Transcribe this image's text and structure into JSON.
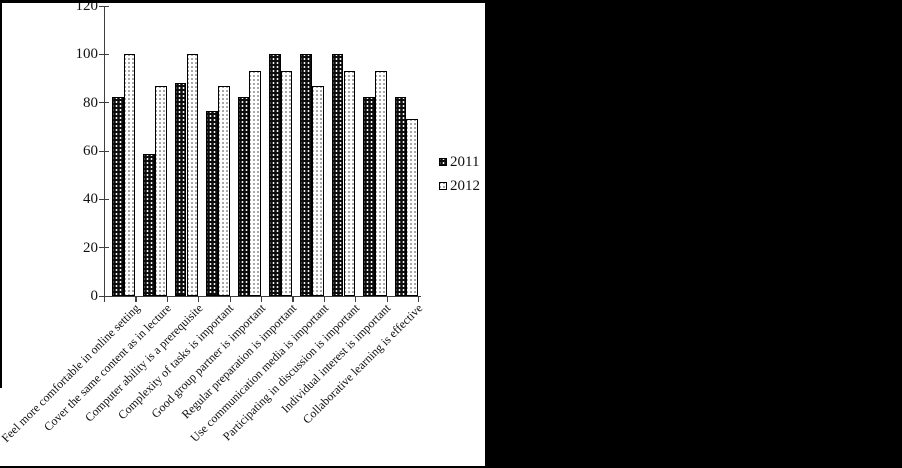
{
  "figure": {
    "background": "#ffffff",
    "mask_color": "#000000",
    "axis_color": "#3f3f3f",
    "text_color": "#111111"
  },
  "chart_data": {
    "type": "bar",
    "title": "",
    "xlabel": "",
    "ylabel": "",
    "ylim": [
      0,
      120
    ],
    "yticks": [
      0,
      20,
      40,
      60,
      80,
      100,
      120
    ],
    "grid": false,
    "legend_position": "right-center",
    "category_label_rotation_deg": 45,
    "categories": [
      "Feel more comfortable in online setting",
      "Cover the same content as in lecture",
      "Computer ability is a prerequisite",
      "Complexity of tasks is important",
      "Good group partner is important",
      "Regular preparation is important",
      "Use communication media is important",
      "Participating in discussion is important",
      "Individual interest is important",
      "Collaborative learning is effective"
    ],
    "series": [
      {
        "name": "2011",
        "fill": "#000000",
        "pattern": "white-dots-on-black",
        "values": [
          82.4,
          58.8,
          88.2,
          76.5,
          82.4,
          100,
          100,
          100,
          82.4,
          82.4
        ]
      },
      {
        "name": "2012",
        "fill": "#ffffff",
        "pattern": "black-dots-on-white",
        "values": [
          100,
          86.7,
          100,
          86.7,
          93.3,
          93.3,
          86.7,
          93.3,
          93.3,
          73.3
        ]
      }
    ]
  }
}
